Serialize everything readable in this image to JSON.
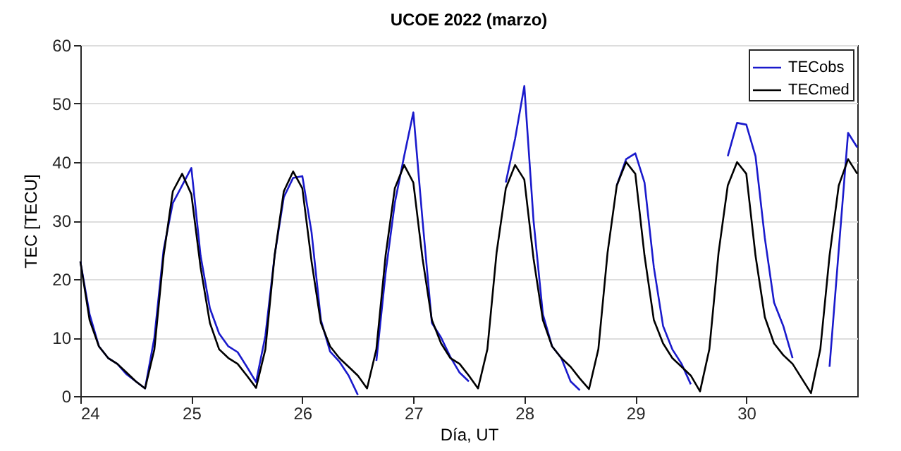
{
  "chart_data": {
    "type": "line",
    "title": "UCOE 2022 (marzo)",
    "xlabel": "Día, UT",
    "ylabel": "TEC [TECU]",
    "x": [
      24,
      24.083,
      24.167,
      24.25,
      24.333,
      24.417,
      24.5,
      24.583,
      24.667,
      24.75,
      24.833,
      24.917,
      25,
      25.083,
      25.167,
      25.25,
      25.333,
      25.417,
      25.5,
      25.583,
      25.667,
      25.75,
      25.833,
      25.917,
      26,
      26.083,
      26.167,
      26.25,
      26.333,
      26.417,
      26.5,
      26.583,
      26.667,
      26.75,
      26.833,
      26.917,
      27,
      27.083,
      27.167,
      27.25,
      27.333,
      27.417,
      27.5,
      27.583,
      27.667,
      27.75,
      27.833,
      27.917,
      28,
      28.083,
      28.167,
      28.25,
      28.333,
      28.417,
      28.5,
      28.583,
      28.667,
      28.75,
      28.833,
      28.917,
      29,
      29.083,
      29.167,
      29.25,
      29.333,
      29.417,
      29.5,
      29.583,
      29.667,
      29.75,
      29.833,
      29.917,
      30,
      30.083,
      30.167,
      30.25,
      30.333,
      30.417,
      30.5,
      30.583,
      30.667,
      30.75,
      30.833,
      30.917,
      31
    ],
    "series": [
      {
        "name": "TECobs",
        "color": "#1a1acc",
        "values": [
          23,
          14,
          8.5,
          6.5,
          5.5,
          3.7,
          2.5,
          1.3,
          10,
          25,
          33,
          36,
          39,
          24,
          15,
          10.7,
          8.5,
          7.5,
          5,
          2.4,
          10.3,
          24,
          34,
          37.3,
          37.6,
          28,
          13,
          7.6,
          5.9,
          3.5,
          0.2,
          null,
          6,
          21,
          33,
          41,
          48.5,
          30,
          12.5,
          10,
          6.7,
          4,
          2.5,
          null,
          null,
          null,
          36.5,
          44,
          53,
          30,
          14,
          8.5,
          6.5,
          2.5,
          1,
          null,
          null,
          null,
          36,
          40.5,
          41.5,
          36.5,
          22,
          12,
          8,
          5.5,
          2,
          null,
          null,
          null,
          41,
          46.7,
          46.4,
          41,
          27,
          16,
          12,
          6.5,
          null,
          null,
          null,
          5,
          25,
          45,
          42.5
        ]
      },
      {
        "name": "TECmed",
        "color": "#000000",
        "values": [
          23,
          13,
          8.5,
          6.5,
          5.5,
          4,
          2.5,
          1.3,
          8,
          24,
          35,
          38,
          34.5,
          22,
          12.5,
          8,
          6.5,
          5.5,
          3.5,
          1.4,
          8,
          24,
          35,
          38.4,
          35.5,
          23,
          12.5,
          8.5,
          6.5,
          5,
          3.5,
          1.3,
          8,
          24,
          35.5,
          39.5,
          36.5,
          23.5,
          13,
          9,
          6.5,
          5.5,
          3.5,
          1.3,
          8,
          24.5,
          35.5,
          39.5,
          37,
          23.5,
          13,
          8.5,
          6.5,
          5,
          3,
          1.2,
          8,
          24.5,
          36,
          40,
          38,
          24,
          13,
          9,
          6.5,
          5,
          3.5,
          0.8,
          8,
          24.5,
          36,
          40,
          38,
          24,
          13.5,
          9,
          7,
          5.5,
          3,
          0.5,
          8,
          24,
          36,
          40.5,
          38
        ]
      }
    ],
    "xlim": [
      24,
      31
    ],
    "xticks": [
      24,
      25,
      26,
      27,
      28,
      29,
      30
    ],
    "ylim": [
      0,
      60
    ],
    "yticks": [
      0,
      10,
      20,
      30,
      40,
      50,
      60
    ],
    "grid": "y",
    "legend": "top right"
  }
}
